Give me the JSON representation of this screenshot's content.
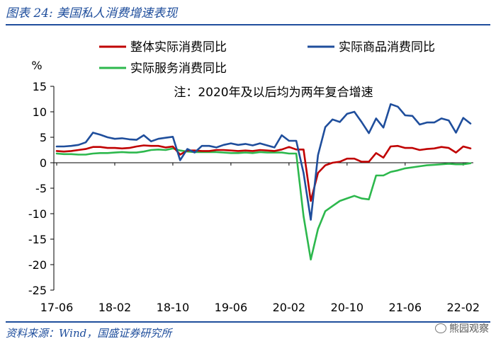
{
  "figure_title": "图表 24:  美国私人消费增速表现",
  "source": "资料来源：Wind，国盛证券研究所",
  "watermark": "熊园观察",
  "chart_data": {
    "type": "line",
    "ylabel": "%",
    "note": "注：2020年及以后均为两年复合增速",
    "ylim": [
      -25,
      15
    ],
    "yticks": [
      "15",
      "10",
      "5",
      "0",
      "-5",
      "-10",
      "-15",
      "-20",
      "-25"
    ],
    "xtick_labels": [
      "17-06",
      "18-02",
      "18-10",
      "19-06",
      "20-02",
      "20-10",
      "21-06",
      "22-02"
    ],
    "xtick_indices": [
      0,
      8,
      16,
      24,
      32,
      40,
      48,
      56
    ],
    "colors": {
      "total": "#c00000",
      "goods": "#1f4e9c",
      "services": "#2db84d"
    },
    "series": [
      {
        "name": "整体实际消费同比",
        "key": "total",
        "values": [
          2.3,
          2.2,
          2.3,
          2.5,
          2.7,
          3.1,
          3.1,
          2.9,
          2.9,
          2.8,
          2.9,
          3.2,
          3.4,
          3.3,
          3.3,
          3.0,
          3.2,
          1.6,
          2.4,
          2.4,
          2.3,
          2.3,
          2.5,
          2.5,
          2.4,
          2.3,
          2.4,
          2.3,
          2.5,
          2.4,
          2.3,
          2.6,
          3.1,
          2.6,
          2.6,
          -7.5,
          -2.0,
          -0.5,
          0.0,
          0.2,
          0.8,
          0.8,
          0.2,
          0.2,
          1.9,
          1.0,
          3.2,
          3.3,
          2.9,
          2.9,
          2.5,
          2.7,
          2.8,
          3.1,
          2.9,
          2.0,
          3.2,
          2.8
        ]
      },
      {
        "name": "实际商品消费同比",
        "key": "goods",
        "values": [
          3.2,
          3.2,
          3.3,
          3.5,
          4.0,
          5.9,
          5.5,
          5.0,
          4.7,
          4.8,
          4.6,
          4.5,
          5.4,
          4.2,
          4.7,
          4.9,
          5.1,
          0.5,
          2.7,
          2.0,
          3.3,
          3.3,
          3.0,
          3.5,
          3.8,
          3.5,
          3.7,
          3.4,
          3.8,
          3.4,
          3.0,
          5.4,
          4.3,
          4.3,
          -2.0,
          -11.2,
          1.5,
          7.0,
          8.5,
          8.0,
          9.6,
          10.0,
          8.0,
          5.8,
          8.7,
          6.9,
          11.5,
          11.0,
          9.3,
          9.2,
          7.5,
          7.9,
          7.9,
          8.7,
          8.3,
          5.9,
          8.8,
          7.7
        ]
      },
      {
        "name": "实际服务消费同比",
        "key": "services",
        "values": [
          1.8,
          1.7,
          1.7,
          1.6,
          1.6,
          1.8,
          1.9,
          1.9,
          2.0,
          2.1,
          2.0,
          2.0,
          2.2,
          2.5,
          2.6,
          2.5,
          2.8,
          2.4,
          2.2,
          2.1,
          2.1,
          2.1,
          2.1,
          2.0,
          1.9,
          1.9,
          2.0,
          1.9,
          2.1,
          2.0,
          2.0,
          2.0,
          1.8,
          1.8,
          -10.5,
          -19.0,
          -13.0,
          -9.5,
          -8.5,
          -7.5,
          -7.0,
          -6.5,
          -7.0,
          -7.2,
          -2.5,
          -2.5,
          -1.8,
          -1.5,
          -1.1,
          -0.9,
          -0.7,
          -0.5,
          -0.4,
          -0.3,
          -0.2,
          -0.3,
          -0.3,
          -0.1
        ]
      }
    ]
  }
}
